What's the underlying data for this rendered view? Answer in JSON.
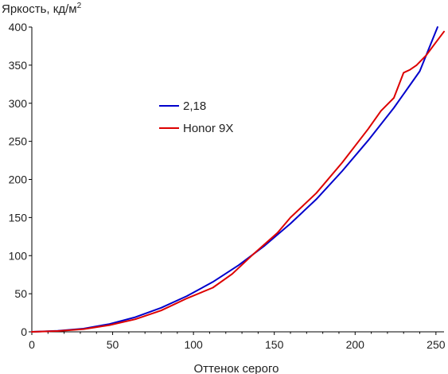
{
  "chart_data": {
    "type": "line",
    "title": "",
    "xlabel": "Оттенок серого",
    "ylabel": "Яркость, кд/м",
    "ylabel_sup": "2",
    "xlim": [
      0,
      255
    ],
    "ylim": [
      0,
      400
    ],
    "xticks": [
      0,
      50,
      100,
      150,
      200,
      250
    ],
    "yticks": [
      0,
      50,
      100,
      150,
      200,
      250,
      300,
      350,
      400
    ],
    "grid": false,
    "legend_position": "center-left",
    "series": [
      {
        "name": "2,18",
        "color": "#0000cc",
        "x": [
          0,
          16,
          32,
          48,
          64,
          80,
          96,
          112,
          128,
          144,
          160,
          176,
          192,
          208,
          224,
          240,
          251
        ],
        "y": [
          0,
          1.3,
          4.2,
          10.2,
          19.2,
          31.5,
          47,
          65.5,
          87.5,
          113,
          142,
          174,
          211,
          251,
          294,
          342,
          400
        ]
      },
      {
        "name": "Honor 9X",
        "color": "#dd0000",
        "x": [
          0,
          16,
          32,
          48,
          64,
          80,
          96,
          112,
          124,
          136,
          152,
          160,
          176,
          192,
          208,
          216,
          224,
          230,
          234,
          238,
          244,
          250,
          255
        ],
        "y": [
          0,
          1.0,
          3.5,
          8.8,
          16.5,
          28,
          44,
          58,
          76,
          100,
          130,
          150,
          182,
          222,
          266,
          290,
          307,
          340,
          344,
          350,
          363,
          380,
          394
        ]
      }
    ]
  }
}
